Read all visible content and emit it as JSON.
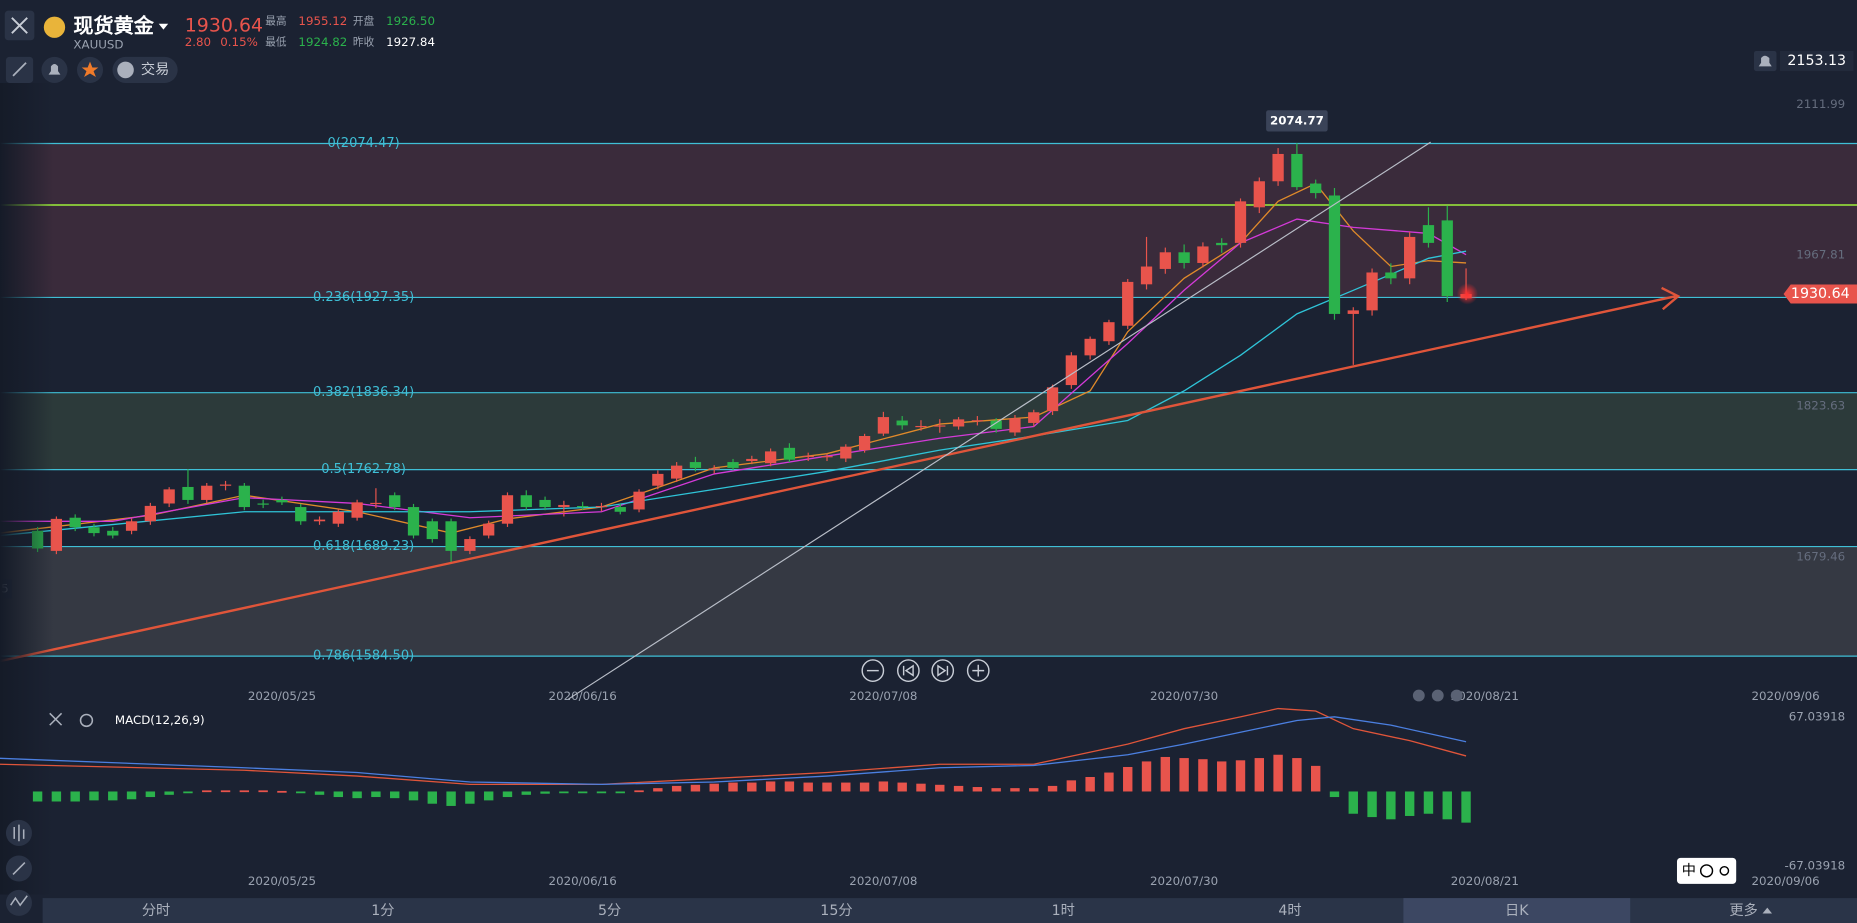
{
  "header": {
    "name": "现货黄金",
    "symbol": "XAUUSD",
    "price": "1930.64",
    "change": "2.80",
    "change_pct": "0.15%",
    "stats": [
      {
        "label": "最高",
        "value": "1955.12"
      },
      {
        "label": "开盘",
        "value": "1926.50"
      },
      {
        "label": "最低",
        "value": "1924.82"
      },
      {
        "label": "昨收",
        "value": "1927.84"
      }
    ]
  },
  "toolbar": {
    "trade": "交易"
  },
  "tabs": [
    "分时",
    "1分",
    "5分",
    "15分",
    "1时",
    "4时",
    "日K",
    "更多"
  ],
  "active_tab": "日K",
  "toggle": "中",
  "chart_data": [
    {
      "type": "candlestick",
      "up_color": "#e8544c",
      "down_color": "#2bb24c",
      "xlim": [
        -2,
        96.8
      ],
      "ylim": [
        1557.06,
        2132.38
      ],
      "xticks": [
        {
          "value": 13,
          "label": "2020/05/25"
        },
        {
          "value": 29,
          "label": "2020/06/16"
        },
        {
          "value": 45,
          "label": "2020/07/08"
        },
        {
          "value": 61,
          "label": "2020/07/30"
        },
        {
          "value": 77,
          "label": "2020/08/21"
        },
        {
          "value": 93,
          "label": "2020/09/06"
        }
      ],
      "yticks": [
        2111.99,
        1967.81,
        1823.63,
        1679.46
      ],
      "alert_price": 2153.13,
      "last_price": 1930.64,
      "high_label": 2074.77,
      "edge_label": "5",
      "hline": {
        "value": 2015.7,
        "color": "#8fd43a"
      },
      "fib_levels": [
        {
          "value": 2074.47,
          "label": "0(2074.47)"
        },
        {
          "value": 1927.35,
          "label": "0.236(1927.35)"
        },
        {
          "value": 1836.34,
          "label": "0.382(1836.34)"
        },
        {
          "value": 1762.78,
          "label": "0.5(1762.78)"
        },
        {
          "value": 1689.23,
          "label": "0.618(1689.23)"
        },
        {
          "value": 1584.5,
          "label": "0.786(1584.50)"
        }
      ],
      "fib_color": "#3fbfd6",
      "fib_band_colors": [
        "#3a2b3b",
        "#1b2232",
        "#2c3a3a",
        "#1b2232",
        "#353943"
      ],
      "candles": [
        [
          1704.3,
          1708,
          1684,
          1687.4
        ],
        [
          1685.1,
          1718,
          1682,
          1715.7
        ],
        [
          1716.8,
          1720,
          1704,
          1707.7
        ],
        [
          1707.7,
          1711,
          1699,
          1702.1
        ],
        [
          1704.3,
          1708,
          1697,
          1699.8
        ],
        [
          1704.3,
          1716,
          1701,
          1713.4
        ],
        [
          1713.4,
          1731,
          1710,
          1728.1
        ],
        [
          1730.4,
          1746,
          1727,
          1743.9
        ],
        [
          1746.2,
          1763.2,
          1730,
          1733.8
        ],
        [
          1733.8,
          1750,
          1731,
          1747.4
        ],
        [
          1747.4,
          1752,
          1743,
          1748.5
        ],
        [
          1747.4,
          1750,
          1724,
          1727
        ],
        [
          1730.4,
          1734,
          1726,
          1729.3
        ],
        [
          1733.8,
          1737,
          1729,
          1731.5
        ],
        [
          1727,
          1730,
          1710,
          1713.4
        ],
        [
          1713.4,
          1718,
          1710,
          1715
        ],
        [
          1711.1,
          1725,
          1708,
          1722.5
        ],
        [
          1716.8,
          1734,
          1714,
          1731.5
        ],
        [
          1730.4,
          1745,
          1726,
          1731
        ],
        [
          1738.3,
          1741,
          1724,
          1727
        ],
        [
          1727,
          1730,
          1697,
          1699.8
        ],
        [
          1713.4,
          1716,
          1693,
          1696.4
        ],
        [
          1713.4,
          1716,
          1673.8,
          1685.1
        ],
        [
          1685.1,
          1699,
          1682,
          1696.4
        ],
        [
          1699.8,
          1714,
          1697,
          1711.1
        ],
        [
          1711.1,
          1741,
          1708,
          1738.3
        ],
        [
          1738.3,
          1743,
          1724,
          1727
        ],
        [
          1733.8,
          1737,
          1724,
          1727
        ],
        [
          1727,
          1733,
          1718,
          1729
        ],
        [
          1728,
          1732,
          1724,
          1727.5
        ],
        [
          1727,
          1731,
          1723,
          1728
        ],
        [
          1727,
          1730,
          1720,
          1722.5
        ],
        [
          1724.7,
          1744,
          1722,
          1741.7
        ],
        [
          1747.4,
          1762,
          1744,
          1758.7
        ],
        [
          1754.2,
          1770,
          1751,
          1766.6
        ],
        [
          1770,
          1775,
          1761,
          1764.4
        ],
        [
          1763,
          1767,
          1759,
          1764
        ],
        [
          1770,
          1773,
          1762,
          1764.4
        ],
        [
          1771,
          1776,
          1768,
          1773
        ],
        [
          1768.9,
          1783,
          1766,
          1780.2
        ],
        [
          1783.6,
          1788,
          1770,
          1772.3
        ],
        [
          1775,
          1779,
          1771,
          1776
        ],
        [
          1775,
          1778,
          1771,
          1775.7
        ],
        [
          1773.4,
          1787,
          1770,
          1784.7
        ],
        [
          1781.4,
          1797,
          1779,
          1794.9
        ],
        [
          1797.2,
          1818,
          1795,
          1813
        ],
        [
          1809.7,
          1814,
          1801,
          1805.1
        ],
        [
          1804,
          1810,
          1800,
          1804.5
        ],
        [
          1804,
          1811,
          1798,
          1805
        ],
        [
          1804,
          1813,
          1801,
          1810.8
        ],
        [
          1809,
          1814,
          1805,
          1810
        ],
        [
          1809.7,
          1812,
          1798,
          1801.7
        ],
        [
          1798.3,
          1815,
          1795,
          1811.9
        ],
        [
          1807.4,
          1820,
          1804,
          1817.6
        ],
        [
          1818.7,
          1844,
          1815,
          1841.4
        ],
        [
          1843.6,
          1875,
          1840,
          1872
        ],
        [
          1872,
          1890,
          1868,
          1887.8
        ],
        [
          1885.5,
          1906,
          1882,
          1903.7
        ],
        [
          1900.3,
          1945,
          1897,
          1942.2
        ],
        [
          1939.9,
          1985.2,
          1935,
          1956.9
        ],
        [
          1954.6,
          1975,
          1950,
          1970.5
        ],
        [
          1970.5,
          1978,
          1955,
          1960.3
        ],
        [
          1960.3,
          1980,
          1956,
          1976.1
        ],
        [
          1979.5,
          1984,
          1970,
          1977.3
        ],
        [
          1979.5,
          2022,
          1975,
          2019.2
        ],
        [
          2013.5,
          2042,
          2008,
          2038.4
        ],
        [
          2038.4,
          2070.1,
          2034,
          2064.5
        ],
        [
          2064.5,
          2074.77,
          2030,
          2032.8
        ],
        [
          2036.2,
          2040,
          2022,
          2027.1
        ],
        [
          2024.8,
          2032,
          1906,
          1911.6
        ],
        [
          1911.6,
          1918,
          1862.9,
          1915
        ],
        [
          1915,
          1955,
          1910,
          1951.2
        ],
        [
          1951.2,
          1960,
          1940,
          1945.6
        ],
        [
          1945.6,
          1990,
          1940,
          1985.2
        ],
        [
          1996.5,
          2013.5,
          1975,
          1979.5
        ],
        [
          2001,
          2015,
          1923,
          1928.6
        ],
        [
          1926.5,
          1955.12,
          1924.82,
          1930.64
        ]
      ],
      "lines": [
        {
          "color": "#e08a2a",
          "x": [
            -2,
            6,
            11,
            17,
            22,
            25,
            30,
            36,
            42,
            48,
            53,
            56,
            58,
            61,
            64,
            66,
            68,
            70,
            72,
            74,
            76
          ],
          "values": [
            1702.1,
            1719,
            1738.3,
            1722.5,
            1702.1,
            1715.7,
            1727,
            1764.4,
            1778,
            1806.3,
            1813,
            1838,
            1894.6,
            1945.6,
            1979.5,
            2019.2,
            2036.2,
            1990.9,
            1956.9,
            1962.5,
            1960.3
          ]
        },
        {
          "color": "#d43ad8",
          "x": [
            -2,
            4,
            11,
            17,
            23,
            30,
            36,
            42,
            48,
            53,
            58,
            61,
            64,
            67,
            70,
            74,
            76
          ],
          "values": [
            1713.4,
            1713.4,
            1736,
            1730.4,
            1716.8,
            1722.5,
            1758.7,
            1775.7,
            1792.7,
            1804,
            1883.3,
            1934.2,
            1979.5,
            2002.2,
            1994.3,
            1988.6,
            1968.2
          ]
        },
        {
          "color": "#2fc4d8",
          "x": [
            -2,
            11,
            23,
            30,
            36,
            42,
            48,
            53,
            58,
            61,
            64,
            67,
            70,
            74,
            76
          ],
          "values": [
            1699.8,
            1722.5,
            1722.5,
            1727,
            1743.9,
            1761,
            1781.4,
            1794.9,
            1809.7,
            1838,
            1872,
            1911.6,
            1934.2,
            1964.8,
            1971.6
          ]
        }
      ]
    },
    {
      "type": "macd",
      "label": "MACD(12,26,9)",
      "ylim": [
        -92.6,
        74.5
      ],
      "yticks": [
        67.03918,
        -67.03918
      ],
      "up_color": "#e8544c",
      "down_color": "#2bb24c",
      "histogram": [
        -9,
        -9,
        -9,
        -8,
        -8,
        -7,
        -5,
        -3,
        -1,
        1,
        1,
        1,
        1,
        0.5,
        -1,
        -3,
        -5,
        -6,
        -5,
        -6,
        -8,
        -11,
        -13,
        -11,
        -8,
        -5,
        -3,
        -2,
        -1,
        -1,
        -1,
        -0.5,
        1,
        3,
        5,
        6,
        7,
        8,
        8,
        9,
        9,
        8,
        8,
        8,
        8,
        9,
        8,
        7,
        6,
        5,
        4,
        3,
        3,
        3,
        5,
        10,
        13,
        17,
        22,
        27,
        31,
        30,
        29,
        27,
        28,
        30,
        33,
        30,
        23,
        -5,
        -20,
        -23,
        -25,
        -22,
        -20,
        -25,
        -28
      ],
      "lines": [
        {
          "color": "#e0553a",
          "x": [
            -2,
            11,
            17,
            23,
            30,
            36,
            42,
            48,
            53,
            58,
            61,
            64,
            66,
            68,
            70,
            73,
            76
          ],
          "values": [
            24.5,
            19.1,
            13.8,
            6.4,
            6.4,
            11.7,
            17,
            24.5,
            24.5,
            42.6,
            56.4,
            67,
            74.5,
            72.3,
            56.4,
            45.7,
            31.9
          ]
        },
        {
          "color": "#4b7fe0",
          "x": [
            -2,
            11,
            17,
            23,
            30,
            36,
            42,
            48,
            53,
            58,
            61,
            64,
            67,
            69,
            72,
            76
          ],
          "values": [
            29.8,
            21.3,
            17,
            8.5,
            6.4,
            8.5,
            13.8,
            21.3,
            23.4,
            33,
            42.6,
            53.2,
            63.8,
            67,
            59.6,
            44.7
          ]
        }
      ]
    }
  ]
}
